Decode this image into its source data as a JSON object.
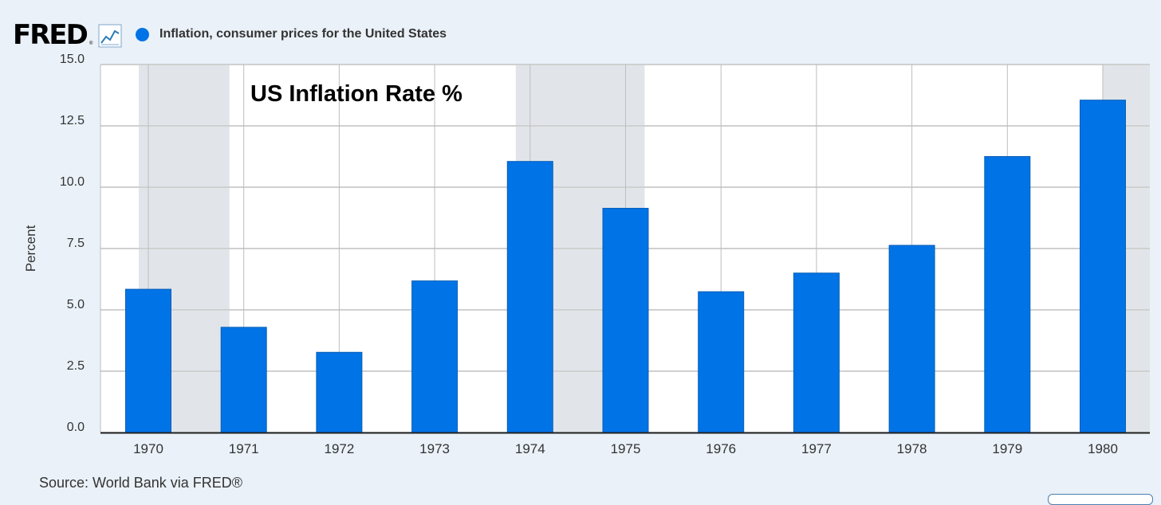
{
  "header": {
    "logo": "FRED",
    "logo_reg": "®",
    "legend_label": "Inflation, consumer prices for the United States",
    "legend_color": "#0073e6"
  },
  "source": "Source: World Bank via FRED®",
  "chart_data": {
    "type": "bar",
    "title": "US Inflation Rate %",
    "ylabel": "Percent",
    "xlabel": "",
    "categories": [
      "1970",
      "1971",
      "1972",
      "1973",
      "1974",
      "1975",
      "1976",
      "1977",
      "1978",
      "1979",
      "1980"
    ],
    "series": [
      {
        "name": "Inflation, consumer prices for the United States",
        "color": "#0073e6",
        "values": [
          5.84,
          4.29,
          3.27,
          6.18,
          11.05,
          9.14,
          5.74,
          6.5,
          7.63,
          11.25,
          13.55
        ]
      }
    ],
    "ylim": [
      0,
      15
    ],
    "yticks": [
      "0.0",
      "2.5",
      "5.0",
      "7.5",
      "10.0",
      "12.5",
      "15.0"
    ],
    "recessions": [
      [
        1969.9,
        1970.85
      ],
      [
        1973.85,
        1975.2
      ],
      [
        1980.0,
        1980.55
      ]
    ],
    "grid": true
  }
}
